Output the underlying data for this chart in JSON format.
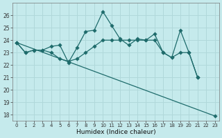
{
  "xlabel": "Humidex (Indice chaleur)",
  "bg_color": "#c5eaec",
  "grid_color": "#b0d8da",
  "line_color": "#1e6b6b",
  "x": [
    0,
    1,
    2,
    3,
    4,
    5,
    6,
    7,
    8,
    9,
    10,
    11,
    12,
    13,
    14,
    15,
    16,
    17,
    18,
    19,
    20,
    21,
    22,
    23
  ],
  "line1_y": [
    23.8,
    23.0,
    23.2,
    23.2,
    23.5,
    23.6,
    22.2,
    23.4,
    24.7,
    24.8,
    26.3,
    25.2,
    24.1,
    23.6,
    24.1,
    24.0,
    24.5,
    23.0,
    22.6,
    24.8,
    23.0,
    21.0,
    null,
    null
  ],
  "line2_y": [
    23.8,
    null,
    null,
    null,
    null,
    null,
    null,
    null,
    null,
    null,
    null,
    null,
    null,
    null,
    null,
    null,
    null,
    null,
    null,
    null,
    null,
    null,
    18.8,
    17.9
  ],
  "line2_straight": true,
  "line3_y": [
    23.8,
    23.0,
    23.2,
    23.2,
    23.0,
    22.5,
    22.3,
    22.5,
    23.0,
    23.5,
    24.0,
    24.0,
    24.0,
    24.0,
    24.0,
    24.0,
    24.0,
    23.0,
    22.6,
    23.0,
    23.0,
    21.0,
    null,
    null
  ],
  "ylim": [
    17.5,
    27.0
  ],
  "yticks": [
    18,
    19,
    20,
    21,
    22,
    23,
    24,
    25,
    26
  ],
  "xlim": [
    -0.5,
    23.5
  ]
}
